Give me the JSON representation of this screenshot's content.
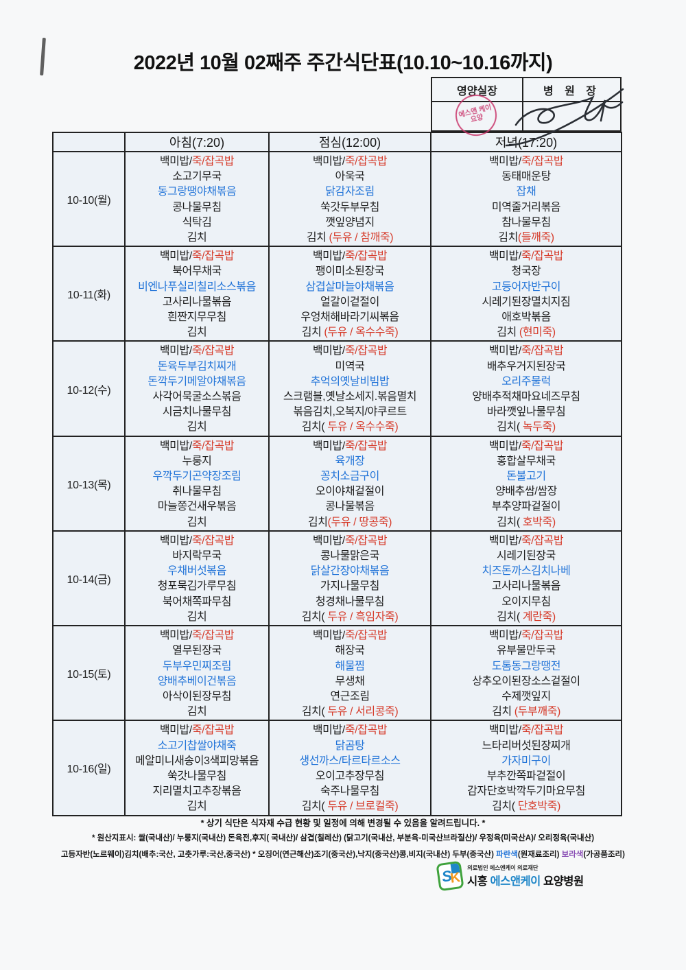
{
  "page": {
    "title": "2022년 10월 02째주 주간식단표(10.10~10.16까지)"
  },
  "approval": {
    "nutrition_label": "영양실장",
    "director_label": "병 원 장",
    "stamp_text": "에스앤 케이요양"
  },
  "colors": {
    "text_black": "#1e1e1e",
    "menu_red": "#d63b2a",
    "menu_blue": "#2274d8",
    "note_purple": "#8a4fb5",
    "stamp_red": "#c9356b",
    "cell_bg": "#edf2f7",
    "logo_green": "#3fa23c",
    "logo_blue": "#1f86c8",
    "logo_orange": "#f29a1f"
  },
  "table": {
    "headers": [
      "아침(7:20)",
      "점심(12:00)",
      "저녁(17:20)"
    ],
    "rows": [
      {
        "date": "10-10(월)",
        "meals": [
          [
            [
              [
                "백미밥/",
                "k"
              ],
              [
                "죽/잡곡밥",
                "r"
              ]
            ],
            [
              [
                "소고기무국",
                "k"
              ]
            ],
            [
              [
                "동그랑땡야채볶음",
                "b"
              ]
            ],
            [
              [
                "콩나물무침",
                "k"
              ]
            ],
            [
              [
                "식탁김",
                "k"
              ]
            ],
            [
              [
                "김치",
                "k"
              ]
            ]
          ],
          [
            [
              [
                "백미밥/",
                "k"
              ],
              [
                "죽/잡곡밥",
                "r"
              ]
            ],
            [
              [
                "아욱국",
                "k"
              ]
            ],
            [
              [
                "닭감자조림",
                "b"
              ]
            ],
            [
              [
                "쑥갓두부무침",
                "k"
              ]
            ],
            [
              [
                "깻잎양념지",
                "k"
              ]
            ],
            [
              [
                "김치 ",
                "k"
              ],
              [
                "(두유 / 참깨죽)",
                "r"
              ]
            ]
          ],
          [
            [
              [
                "백미밥/",
                "k"
              ],
              [
                "죽/잡곡밥",
                "r"
              ]
            ],
            [
              [
                "동태매운탕",
                "k"
              ]
            ],
            [
              [
                "잡채",
                "b"
              ]
            ],
            [
              [
                "미역줄거리볶음",
                "k"
              ]
            ],
            [
              [
                "참나물무침",
                "k"
              ]
            ],
            [
              [
                "김치",
                "k"
              ],
              [
                "(들깨죽)",
                "r"
              ]
            ]
          ]
        ]
      },
      {
        "date": "10-11(화)",
        "meals": [
          [
            [
              [
                "백미밥/",
                "k"
              ],
              [
                "죽/잡곡밥",
                "r"
              ]
            ],
            [
              [
                "북어무채국",
                "k"
              ]
            ],
            [
              [
                "비엔나푸실리칠리소스볶음",
                "b"
              ]
            ],
            [
              [
                "고사리나물볶음",
                "k"
              ]
            ],
            [
              [
                "흰짠지무무침",
                "k"
              ]
            ],
            [
              [
                "김치",
                "k"
              ]
            ]
          ],
          [
            [
              [
                "백미밥/",
                "k"
              ],
              [
                "죽/잡곡밥",
                "r"
              ]
            ],
            [
              [
                "팽이미소된장국",
                "k"
              ]
            ],
            [
              [
                "삼겹살마늘야채볶음",
                "b"
              ]
            ],
            [
              [
                "얼갈이겉절이",
                "k"
              ]
            ],
            [
              [
                "우엉채해바라기씨볶음",
                "k"
              ]
            ],
            [
              [
                "김치 ",
                "k"
              ],
              [
                "(두유 / 옥수수죽)",
                "r"
              ]
            ]
          ],
          [
            [
              [
                "백미밥/",
                "k"
              ],
              [
                "죽/잡곡밥",
                "r"
              ]
            ],
            [
              [
                "청국장",
                "k"
              ]
            ],
            [
              [
                "고등어자반구이",
                "b"
              ]
            ],
            [
              [
                "시레기된장멸치지짐",
                "k"
              ]
            ],
            [
              [
                "애호박볶음",
                "k"
              ]
            ],
            [
              [
                "김치 ",
                "k"
              ],
              [
                "(현미죽)",
                "r"
              ]
            ]
          ]
        ]
      },
      {
        "date": "10-12(수)",
        "meals": [
          [
            [
              [
                "백미밥/",
                "k"
              ],
              [
                "죽/잡곡밥",
                "r"
              ]
            ],
            [
              [
                "돈육두부김치찌개",
                "b"
              ]
            ],
            [
              [
                "돈깍두기메알야채볶음",
                "b"
              ]
            ],
            [
              [
                "사각어묵굴소스볶음",
                "k"
              ]
            ],
            [
              [
                "시금치나물무침",
                "k"
              ]
            ],
            [
              [
                "김치",
                "k"
              ]
            ]
          ],
          [
            [
              [
                "백미밥/",
                "k"
              ],
              [
                "죽/잡곡밥",
                "r"
              ]
            ],
            [
              [
                "미역국",
                "k"
              ]
            ],
            [
              [
                "추억의옛날비빔밥",
                "b"
              ]
            ],
            [
              [
                "스크램블,옛날소세지.볶음멸치",
                "k"
              ]
            ],
            [
              [
                "볶음김치,오복지/야쿠르트",
                "k"
              ]
            ],
            [
              [
                "김치( ",
                "k"
              ],
              [
                "두유 / 옥수수죽)",
                "r"
              ]
            ]
          ],
          [
            [
              [
                "백미밥/",
                "k"
              ],
              [
                "죽/잡곡밥",
                "r"
              ]
            ],
            [
              [
                "배추우거지된장국",
                "k"
              ]
            ],
            [
              [
                "오리주물럭",
                "b"
              ]
            ],
            [
              [
                "양배추적채마요네즈무침",
                "k"
              ]
            ],
            [
              [
                "바라깻잎나물무침",
                "k"
              ]
            ],
            [
              [
                "김치( ",
                "k"
              ],
              [
                "녹두죽)",
                "r"
              ]
            ]
          ]
        ]
      },
      {
        "date": "10-13(목)",
        "meals": [
          [
            [
              [
                "백미밥/",
                "k"
              ],
              [
                "죽/잡곡밥",
                "r"
              ]
            ],
            [
              [
                "누룽지",
                "k"
              ]
            ],
            [
              [
                "우깍두기곤약장조림",
                "b"
              ]
            ],
            [
              [
                "취나물무침",
                "k"
              ]
            ],
            [
              [
                "마늘쫑건새우볶음",
                "k"
              ]
            ],
            [
              [
                "김치",
                "k"
              ]
            ]
          ],
          [
            [
              [
                "백미밥/",
                "k"
              ],
              [
                "죽/잡곡밥",
                "r"
              ]
            ],
            [
              [
                "육개장",
                "b"
              ]
            ],
            [
              [
                "꽁치소금구이",
                "b"
              ]
            ],
            [
              [
                "오이야채겉절이",
                "k"
              ]
            ],
            [
              [
                "콩나물볶음",
                "k"
              ]
            ],
            [
              [
                "김치",
                "k"
              ],
              [
                "(두유 / 땅콩죽)",
                "r"
              ]
            ]
          ],
          [
            [
              [
                "백미밥/",
                "k"
              ],
              [
                "죽/잡곡밥",
                "r"
              ]
            ],
            [
              [
                "홍합살무채국",
                "k"
              ]
            ],
            [
              [
                "돈불고기",
                "b"
              ]
            ],
            [
              [
                "양배추쌈/쌈장",
                "k"
              ]
            ],
            [
              [
                "부추양파겉절이",
                "k"
              ]
            ],
            [
              [
                "김치( ",
                "k"
              ],
              [
                "호박죽)",
                "r"
              ]
            ]
          ]
        ]
      },
      {
        "date": "10-14(금)",
        "meals": [
          [
            [
              [
                "백미밥/",
                "k"
              ],
              [
                "죽/잡곡밥",
                "r"
              ]
            ],
            [
              [
                "바지락무국",
                "k"
              ]
            ],
            [
              [
                "우채버섯볶음",
                "b"
              ]
            ],
            [
              [
                "청포묵김가루무침",
                "k"
              ]
            ],
            [
              [
                "북어채쪽파무침",
                "k"
              ]
            ],
            [
              [
                "김치",
                "k"
              ]
            ]
          ],
          [
            [
              [
                "백미밥/",
                "k"
              ],
              [
                "죽/잡곡밥",
                "r"
              ]
            ],
            [
              [
                "콩나물맑은국",
                "k"
              ]
            ],
            [
              [
                "닭살간장야채볶음",
                "b"
              ]
            ],
            [
              [
                "가지나물무침",
                "k"
              ]
            ],
            [
              [
                "청경채나물무침",
                "k"
              ]
            ],
            [
              [
                "김치( ",
                "k"
              ],
              [
                "두유 / 흑임자죽)",
                "r"
              ]
            ]
          ],
          [
            [
              [
                "백미밥/",
                "k"
              ],
              [
                "죽/잡곡밥",
                "r"
              ]
            ],
            [
              [
                "시레기된장국",
                "k"
              ]
            ],
            [
              [
                "치즈돈까스김치나베",
                "b"
              ]
            ],
            [
              [
                "고사리나물볶음",
                "k"
              ]
            ],
            [
              [
                "오이지무침",
                "k"
              ]
            ],
            [
              [
                "김치( ",
                "k"
              ],
              [
                "계란죽)",
                "r"
              ]
            ]
          ]
        ]
      },
      {
        "date": "10-15(토)",
        "meals": [
          [
            [
              [
                "백미밥/",
                "k"
              ],
              [
                "죽/잡곡밥",
                "r"
              ]
            ],
            [
              [
                "열무된장국",
                "k"
              ]
            ],
            [
              [
                "두부우민찌조림",
                "b"
              ]
            ],
            [
              [
                "양배추베이건볶음",
                "b"
              ]
            ],
            [
              [
                "아삭이된장무침",
                "k"
              ]
            ],
            [
              [
                "김치",
                "k"
              ]
            ]
          ],
          [
            [
              [
                "백미밥/",
                "k"
              ],
              [
                "죽/잡곡밥",
                "r"
              ]
            ],
            [
              [
                "해장국",
                "k"
              ]
            ],
            [
              [
                "해물찜",
                "b"
              ]
            ],
            [
              [
                "무생채",
                "k"
              ]
            ],
            [
              [
                "연근조림",
                "k"
              ]
            ],
            [
              [
                "김치( ",
                "k"
              ],
              [
                "두유 / 서리콩죽)",
                "r"
              ]
            ]
          ],
          [
            [
              [
                "백미밥/",
                "k"
              ],
              [
                "죽/잡곡밥",
                "r"
              ]
            ],
            [
              [
                "유부물만두국",
                "k"
              ]
            ],
            [
              [
                "도톰동그랑땡전",
                "b"
              ]
            ],
            [
              [
                "상추오이된장소스겉절이",
                "k"
              ]
            ],
            [
              [
                "수제깻잎지",
                "k"
              ]
            ],
            [
              [
                "김치 ",
                "k"
              ],
              [
                "(두부깨죽)",
                "r"
              ]
            ]
          ]
        ]
      },
      {
        "date": "10-16(일)",
        "meals": [
          [
            [
              [
                "백미밥/",
                "k"
              ],
              [
                "죽/잡곡밥",
                "r"
              ]
            ],
            [
              [
                "소고기찹쌀야채죽",
                "b"
              ]
            ],
            [
              [
                "메알미니새송이3색피망볶음",
                "k"
              ]
            ],
            [
              [
                "쑥갓나물무침",
                "k"
              ]
            ],
            [
              [
                "지리멸치고추장볶음",
                "k"
              ]
            ],
            [
              [
                "김치",
                "k"
              ]
            ]
          ],
          [
            [
              [
                "백미밥/",
                "k"
              ],
              [
                "죽/잡곡밥",
                "r"
              ]
            ],
            [
              [
                "닭곰탕",
                "b"
              ]
            ],
            [
              [
                "생선까스/타르타르소스",
                "b"
              ]
            ],
            [
              [
                "오이고추장무침",
                "k"
              ]
            ],
            [
              [
                "숙주나물무침",
                "k"
              ]
            ],
            [
              [
                "김치( ",
                "k"
              ],
              [
                "두유 / 브로컬죽)",
                "r"
              ]
            ]
          ],
          [
            [
              [
                "백미밥/",
                "k"
              ],
              [
                "죽/잡곡밥",
                "r"
              ]
            ],
            [
              [
                "느타리버섯된장찌개",
                "k"
              ]
            ],
            [
              [
                "가자미구이",
                "b"
              ]
            ],
            [
              [
                "부추깐쪽파겉절이",
                "k"
              ]
            ],
            [
              [
                "감자단호박깍두기마요무침",
                "k"
              ]
            ],
            [
              [
                "김치( ",
                "k"
              ],
              [
                "단호박죽)",
                "r"
              ]
            ]
          ]
        ]
      }
    ]
  },
  "footer": {
    "note1": "* 상기 식단은 식자재 수급 현황 및 일정에 의해 변경될 수 있음을 알려드립니다. *",
    "note2": "* 원산지표시: 쌀(국내산)/ 누룽지(국내산) 돈육전,후지( 국내산)/ 삼겹(칠레산) (닭고기(국내산, 부분육-미국산브라질산)/ 우정육(미국산A)/ 오리정육(국내산)",
    "note3_pre": "고등자반(노르웨이)김치(배추:국산, 고춧가루:국산,중국산) * 오징어(연근해산)조기(중국산),낙지(중국산)콩,비지(국내산) 두부(중국산) ",
    "note3_blue": "파란색",
    "note3_mid": "(원재료조리) ",
    "note3_purple": "보라색",
    "note3_tail": "(가공품조리)"
  },
  "logo": {
    "icon_s": "S",
    "icon_k": "K",
    "small_text": "의료법인 에스앤케이 의료재단",
    "big_pre": "시흥 ",
    "big_blue": "에스앤케이",
    "big_tail": " 요양병원"
  }
}
